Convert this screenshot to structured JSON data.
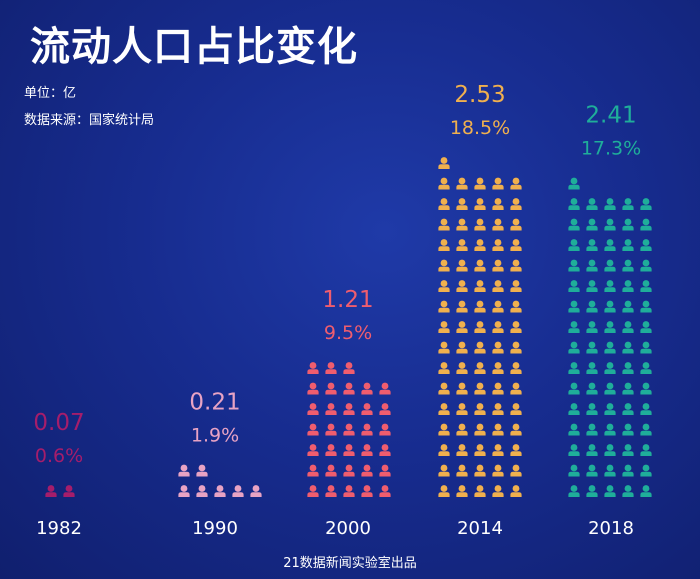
{
  "header": {
    "title": "流动人口占比变化",
    "unit": "单位：亿",
    "source": "数据来源：国家统计局"
  },
  "footer": {
    "credit": "21数据新闻实验室出品"
  },
  "chart_data": {
    "type": "pictogram",
    "categories": [
      "1982",
      "1990",
      "2000",
      "2014",
      "2018"
    ],
    "series": [
      {
        "values": [
          0.07,
          0.21,
          1.21,
          2.53,
          2.41
        ]
      },
      {
        "values": [
          "0.6%",
          "1.9%",
          "9.5%",
          "18.5%",
          "17.3%"
        ]
      }
    ],
    "value_labels": [
      "0.07",
      "0.21",
      "1.21",
      "2.53",
      "2.41"
    ],
    "percent_labels": [
      "0.6%",
      "1.9%",
      "9.5%",
      "18.5%",
      "17.3%"
    ],
    "icon_counts": [
      2,
      7,
      33,
      81,
      76
    ],
    "icon": "person-icon",
    "colors": [
      "#a51d6b",
      "#e8a3c4",
      "#f05d6e",
      "#f0b04e",
      "#1fae9a"
    ]
  }
}
